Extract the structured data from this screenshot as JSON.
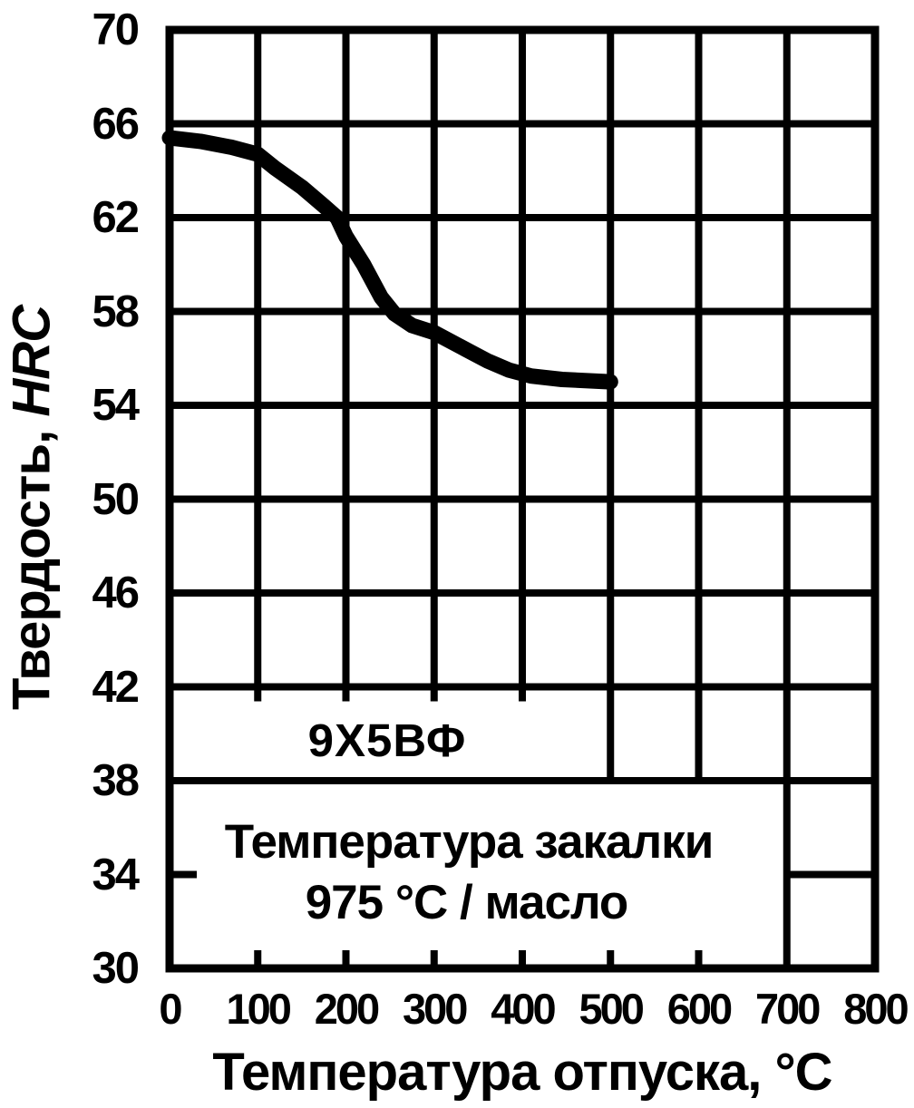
{
  "page": {
    "background": "#ffffff",
    "ink": "#000000"
  },
  "chart_data": {
    "type": "line",
    "title": "",
    "xlabel": "Температура отпуска, °C",
    "ylabel": "Твердость, HRC",
    "ylabel_text": "Твердость,",
    "ylabel_unit": "HRC",
    "xlim": [
      0,
      800
    ],
    "ylim": [
      30,
      70
    ],
    "x_ticks": [
      0,
      100,
      200,
      300,
      400,
      500,
      600,
      700,
      800
    ],
    "y_ticks": [
      30,
      34,
      38,
      42,
      46,
      50,
      54,
      58,
      62,
      66,
      70
    ],
    "grid": "on",
    "legend_position": "none",
    "series": [
      {
        "name": "9Х5ВФ",
        "points": [
          [
            0,
            65.4
          ],
          [
            35,
            65.25
          ],
          [
            70,
            65.0
          ],
          [
            100,
            64.7
          ],
          [
            120,
            64.1
          ],
          [
            150,
            63.3
          ],
          [
            175,
            62.5
          ],
          [
            190,
            62.0
          ],
          [
            200,
            61.2
          ],
          [
            220,
            60.0
          ],
          [
            240,
            58.6
          ],
          [
            255,
            57.9
          ],
          [
            275,
            57.4
          ],
          [
            300,
            57.1
          ],
          [
            330,
            56.5
          ],
          [
            360,
            55.9
          ],
          [
            385,
            55.5
          ],
          [
            410,
            55.25
          ],
          [
            445,
            55.1
          ],
          [
            500,
            55.0
          ]
        ]
      }
    ],
    "annotations": {
      "series_label": "9Х5ВФ",
      "note_line1": "Температура закалки",
      "note_line2": "975 °C / масло"
    }
  }
}
